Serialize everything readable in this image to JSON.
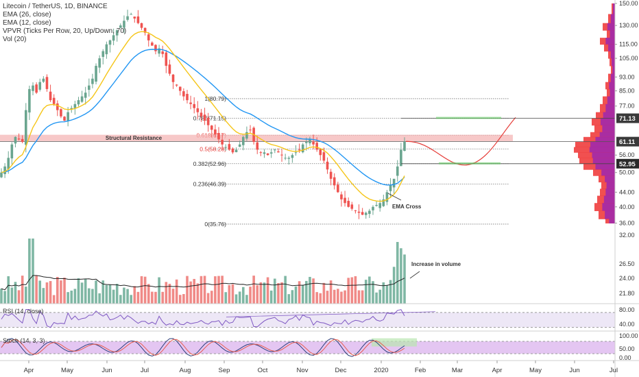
{
  "header": {
    "symbol_line": "Litecoin / TetherUS, 1D, BINANCE",
    "indicators": [
      "EMA (26, close)",
      "EMA (12, close)",
      "VPVR (Ticks Per Row, 20, Up/Down, 70)",
      "Vol (20)"
    ]
  },
  "colors": {
    "up": "#6aa58f",
    "down": "#ef5350",
    "ema26": "#2196f3",
    "ema12": "#f5c518",
    "resistance": "#f4b6b6",
    "target_zone": "#66cc66",
    "projection": "#e53935",
    "rsi": "#7e57c2",
    "rsi_band": "#ede7f6",
    "stoch_k": "#2c3e7a",
    "stoch_d": "#e65c4f",
    "stoch_band": "#e4c6f2"
  },
  "chart_data": [
    {
      "type": "candlestick",
      "title": "Litecoin / TetherUS, 1D, BINANCE",
      "x_ticks": [
        "Apr",
        "May",
        "Jun",
        "Jul",
        "Aug",
        "Sep",
        "Oct",
        "Nov",
        "Dec",
        "2020",
        "Feb",
        "Mar",
        "Apr",
        "May",
        "Jun",
        "Jul"
      ],
      "y_ticks": [
        150.0,
        130.0,
        115.0,
        105.0,
        93.0,
        85.0,
        77.0,
        71.13,
        61.11,
        56.0,
        52.95,
        50.0,
        44.0,
        40.0,
        36.0
      ],
      "y_tick_labels": [
        "150.00",
        "130.00",
        "115.00",
        "105.00",
        "93.00",
        "85.00",
        "77.00",
        "71.13",
        "61.11",
        "56.00",
        "52.95",
        "50.00",
        "44.00",
        "40.00",
        "36.00"
      ],
      "y_scale": "log",
      "ylim": [
        34.5,
        150
      ],
      "last_price": "61.11",
      "price_markers": [
        {
          "label": "71.13",
          "color": "#3a3a3a"
        },
        {
          "label": "61.11",
          "color": "#3a3a3a"
        },
        {
          "label": "52.95",
          "color": "#2a2a2a"
        }
      ],
      "closes": [
        50,
        52,
        55,
        60,
        63,
        62,
        61,
        75,
        86,
        88,
        84,
        90,
        92,
        86,
        80,
        78,
        75,
        72,
        70,
        74,
        76,
        78,
        80,
        82,
        84,
        88,
        92,
        100,
        105,
        110,
        115,
        118,
        122,
        126,
        130,
        134,
        138,
        140,
        136,
        132,
        128,
        124,
        118,
        114,
        110,
        112,
        108,
        100,
        95,
        90,
        88,
        85,
        82,
        80,
        78,
        76,
        74,
        72,
        70,
        68,
        66,
        64,
        62,
        60,
        59,
        58,
        57,
        58,
        60,
        63,
        65,
        66,
        61,
        58,
        57,
        57,
        56,
        57,
        58,
        57,
        56,
        55,
        55,
        56,
        57,
        58,
        60,
        61,
        62,
        60,
        58,
        56,
        54,
        51,
        48,
        46,
        44,
        42,
        41,
        40,
        39.5,
        39,
        38.5,
        38,
        38.5,
        39,
        40,
        40.5,
        41,
        42,
        44,
        46,
        48,
        52,
        58,
        61
      ],
      "fib_levels": [
        {
          "label": "1(80.79)",
          "value": 80.79
        },
        {
          "label": "0.786(71.15)",
          "value": 71.15
        },
        {
          "label": "0.618(63.7)",
          "value": 63.7
        },
        {
          "label": "0.5(58.28)",
          "value": 58.28
        },
        {
          "label": "0.382(52.96)",
          "value": 52.96
        },
        {
          "label": "0.236(46.39)",
          "value": 46.39
        },
        {
          "label": "0(35.76)",
          "value": 35.76
        }
      ],
      "annotations": {
        "resistance_label": "Structural Resistance",
        "ema_cross_label": "EMA Cross",
        "volume_label": "Increase in volume"
      }
    },
    {
      "type": "bar",
      "title": "Vol (20)",
      "y_ticks": [
        "32.00",
        "26.50",
        "24.00",
        "21.80"
      ]
    },
    {
      "type": "line",
      "title": "RSI (14, close)",
      "y_ticks": [
        "80.00",
        "40.00"
      ],
      "ylim": [
        20,
        90
      ],
      "band": [
        30,
        70
      ]
    },
    {
      "type": "line",
      "title": "Stoch (14, 3, 3)",
      "y_ticks": [
        "100.00",
        "50.00",
        "0.00"
      ],
      "ylim": [
        0,
        100
      ],
      "band": [
        20,
        80
      ]
    }
  ]
}
